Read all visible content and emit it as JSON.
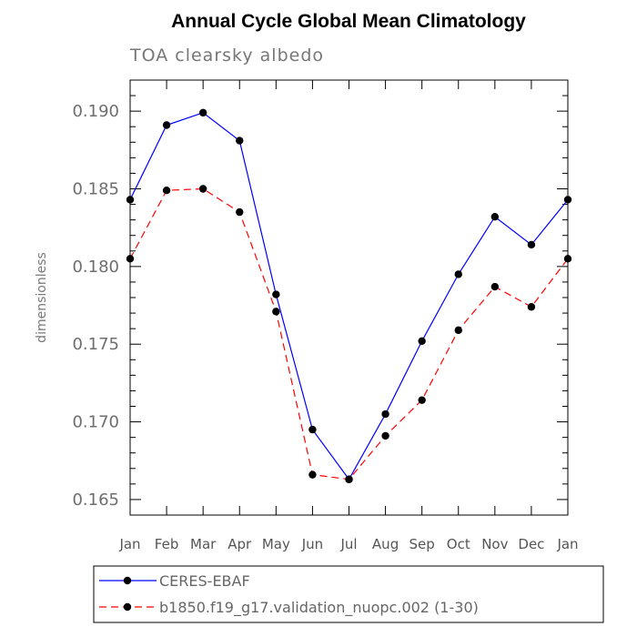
{
  "chart_data": {
    "type": "line",
    "title": "Annual Cycle Global Mean Climatology",
    "subtitle": "TOA clearsky albedo",
    "xlabel": "",
    "ylabel": "dimensionless",
    "categories": [
      "Jan",
      "Feb",
      "Mar",
      "Apr",
      "May",
      "Jun",
      "Jul",
      "Aug",
      "Sep",
      "Oct",
      "Nov",
      "Dec",
      "Jan"
    ],
    "ylim": [
      0.164,
      0.192
    ],
    "yticks": [
      "0.165",
      "0.170",
      "0.175",
      "0.180",
      "0.185",
      "0.190"
    ],
    "grid": false,
    "legend_position": "bottom",
    "series": [
      {
        "name": "CERES-EBAF",
        "color": "#0000ff",
        "dash": "solid",
        "values": [
          0.1843,
          0.1891,
          0.1899,
          0.1881,
          0.1782,
          0.1695,
          0.1663,
          0.1705,
          0.1752,
          0.1795,
          0.1832,
          0.1814,
          0.1843
        ]
      },
      {
        "name": "b1850.f19_g17.validation_nuopc.002 (1-30)",
        "color": "#ff0000",
        "dash": "dashed",
        "values": [
          0.1805,
          0.1849,
          0.185,
          0.1835,
          0.1771,
          0.1666,
          0.1663,
          0.1691,
          0.1714,
          0.1759,
          0.1787,
          0.1774,
          0.1805
        ]
      }
    ]
  }
}
